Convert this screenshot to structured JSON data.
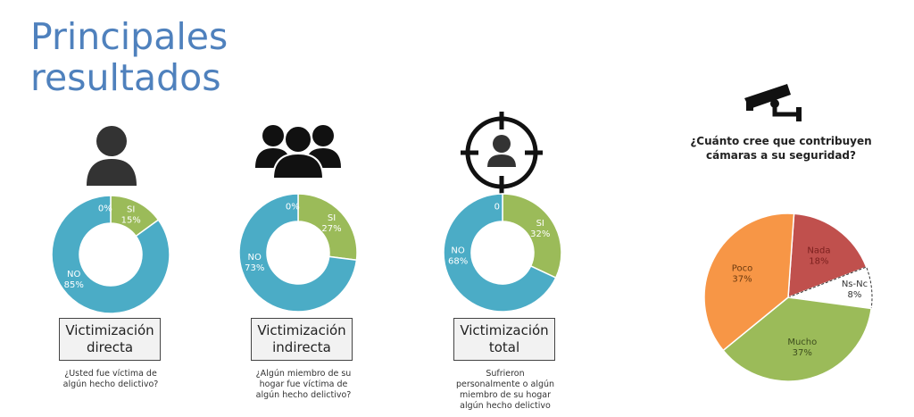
{
  "title": [
    "Principales",
    "resultados"
  ],
  "colors": {
    "si": "#9bbb59",
    "no": "#4bacc6",
    "nada": "#c0504d",
    "nsnc": "#ffffff",
    "mucho": "#9bbb59",
    "poco": "#f79646",
    "title": "#4f81bd"
  },
  "panels": [
    {
      "icon": "person-icon",
      "box": [
        "Victimización",
        "directa"
      ],
      "question": [
        "¿Usted fue víctima de",
        "algún hecho delictivo?"
      ]
    },
    {
      "icon": "group-icon",
      "box": [
        "Victimización",
        "indirecta"
      ],
      "question": [
        "¿Algún miembro de su",
        "hogar fue víctima de",
        "algún hecho delictivo?"
      ]
    },
    {
      "icon": "target-person-icon",
      "box": [
        "Victimización",
        "total"
      ],
      "question": [
        "Sufrieron",
        "personalmente o algún",
        "miembro de su hogar",
        "algún hecho delictivo"
      ]
    }
  ],
  "camera": {
    "icon": "security-camera-icon",
    "question": [
      "¿Cuánto cree que contribuyen",
      "cámaras a su seguridad?"
    ]
  },
  "chart_data": [
    {
      "type": "donut",
      "categories": [
        "SI",
        "NO",
        "0%"
      ],
      "values": [
        15,
        85,
        0
      ],
      "labels": [
        [
          "SI",
          "15%"
        ],
        [
          "NO",
          "85%"
        ],
        [
          "0%"
        ]
      ]
    },
    {
      "type": "donut",
      "categories": [
        "SI",
        "NO",
        "0%"
      ],
      "values": [
        27,
        73,
        0
      ],
      "labels": [
        [
          "SI",
          "27%"
        ],
        [
          "NO",
          "73%"
        ],
        [
          "0%"
        ]
      ]
    },
    {
      "type": "donut",
      "categories": [
        "SI",
        "NO",
        "0%"
      ],
      "values": [
        32,
        68,
        0
      ],
      "labels": [
        [
          "SI",
          "32%"
        ],
        [
          "NO",
          "68%"
        ],
        [
          "0"
        ]
      ]
    },
    {
      "type": "pie",
      "title": "¿Cuánto cree que contribuyen cámaras a su seguridad?",
      "categories": [
        "Nada",
        "Ns-Nc",
        "Mucho",
        "Poco"
      ],
      "values": [
        18,
        8,
        37,
        37
      ],
      "labels": [
        [
          "Nada",
          "18%"
        ],
        [
          "Ns-Nc",
          "8%"
        ],
        [
          "Mucho",
          "37%"
        ],
        [
          "Poco",
          "37%"
        ]
      ]
    }
  ]
}
